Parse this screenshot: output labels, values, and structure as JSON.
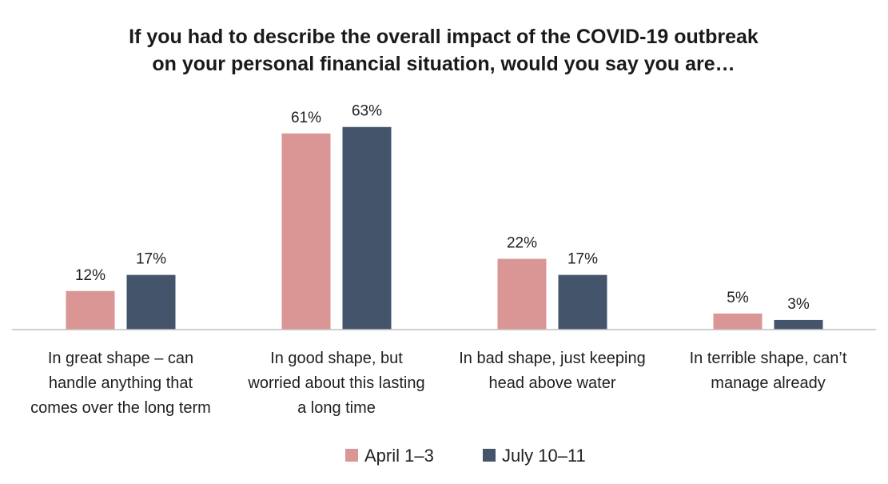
{
  "chart_data": {
    "type": "bar",
    "title_lines": [
      "If you had to describe the overall impact of the COVID-19 outbreak",
      "on your personal financial situation, would you say you are…"
    ],
    "categories": [
      [
        "In great shape – can",
        "handle anything that",
        "comes over the long term"
      ],
      [
        "In good shape, but",
        "worried about this lasting",
        "a long time"
      ],
      [
        "In bad shape, just keeping",
        "head above water"
      ],
      [
        "In terrible shape, can’t",
        "manage already"
      ]
    ],
    "series": [
      {
        "name": "April 1–3",
        "color": "#d99694",
        "values": [
          12,
          61,
          22,
          5
        ],
        "labels": [
          "12%",
          "61%",
          "22%",
          "5%"
        ]
      },
      {
        "name": "July 10–11",
        "color": "#44546a",
        "values": [
          17,
          63,
          17,
          3
        ],
        "labels": [
          "17%",
          "63%",
          "17%",
          "3%"
        ]
      }
    ],
    "ylim": [
      0,
      63
    ],
    "grid": false,
    "legend_position": "bottom"
  }
}
